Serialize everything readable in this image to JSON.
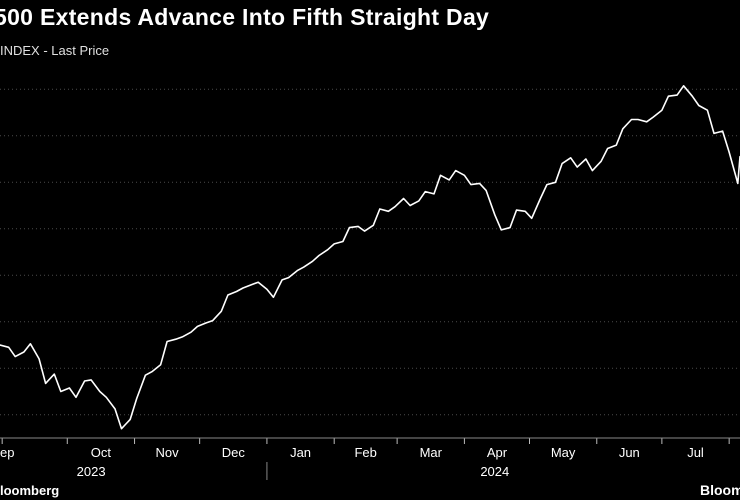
{
  "header": {
    "title": "500 Extends Advance Into Fifth Straight Day",
    "subtitle": "INDEX - Last Price"
  },
  "footer": {
    "source": "loomberg",
    "logo_text": "Bloomberg"
  },
  "colors": {
    "background": "#000000",
    "line": "#ffffff",
    "grid": "#4a4a4a"
  },
  "chart_data": {
    "type": "line",
    "title": "500 Extends Advance Into Fifth Straight Day",
    "subtitle": "INDEX - Last Price",
    "grid": true,
    "x_range": [
      "2023-08-31",
      "2024-08-06"
    ],
    "x_month_labels": [
      "ep",
      "Oct",
      "Nov",
      "Dec",
      "Jan",
      "Feb",
      "Mar",
      "Apr",
      "May",
      "Jun",
      "Jul"
    ],
    "x_year_labels": [
      "2023",
      "2024"
    ],
    "y_range": [
      4100,
      5700
    ],
    "y_gridlines": [
      4200,
      4400,
      4600,
      4800,
      5000,
      5200,
      5400,
      5600
    ],
    "series": [
      {
        "x": [
          "2023-08-31",
          "2023-09-04",
          "2023-09-07",
          "2023-09-11",
          "2023-09-14",
          "2023-09-18",
          "2023-09-21",
          "2023-09-25",
          "2023-09-28",
          "2023-10-02",
          "2023-10-05",
          "2023-10-09",
          "2023-10-12",
          "2023-10-16",
          "2023-10-19",
          "2023-10-23",
          "2023-10-26",
          "2023-10-30",
          "2023-11-02",
          "2023-11-06",
          "2023-11-09",
          "2023-11-13",
          "2023-11-16",
          "2023-11-20",
          "2023-11-23",
          "2023-11-27",
          "2023-11-30",
          "2023-12-04",
          "2023-12-07",
          "2023-12-11",
          "2023-12-14",
          "2023-12-18",
          "2023-12-21",
          "2023-12-25",
          "2023-12-28",
          "2024-01-01",
          "2024-01-04",
          "2024-01-08",
          "2024-01-11",
          "2024-01-15",
          "2024-01-18",
          "2024-01-22",
          "2024-01-25",
          "2024-01-29",
          "2024-02-01",
          "2024-02-05",
          "2024-02-08",
          "2024-02-12",
          "2024-02-15",
          "2024-02-19",
          "2024-02-22",
          "2024-02-26",
          "2024-02-29",
          "2024-03-04",
          "2024-03-07",
          "2024-03-11",
          "2024-03-14",
          "2024-03-18",
          "2024-03-21",
          "2024-03-25",
          "2024-03-28",
          "2024-04-01",
          "2024-04-04",
          "2024-04-08",
          "2024-04-11",
          "2024-04-15",
          "2024-04-18",
          "2024-04-22",
          "2024-04-25",
          "2024-04-29",
          "2024-05-02",
          "2024-05-06",
          "2024-05-09",
          "2024-05-13",
          "2024-05-16",
          "2024-05-20",
          "2024-05-23",
          "2024-05-27",
          "2024-05-30",
          "2024-06-03",
          "2024-06-06",
          "2024-06-10",
          "2024-06-13",
          "2024-06-17",
          "2024-06-20",
          "2024-06-24",
          "2024-06-27",
          "2024-07-01",
          "2024-07-04",
          "2024-07-08",
          "2024-07-11",
          "2024-07-15",
          "2024-07-18",
          "2024-07-22",
          "2024-07-25",
          "2024-07-29",
          "2024-08-01",
          "2024-08-05",
          "2024-08-06"
        ],
        "y": [
          4500,
          4490,
          4450,
          4470,
          4505,
          4440,
          4335,
          4375,
          4300,
          4315,
          4275,
          4345,
          4350,
          4300,
          4275,
          4225,
          4140,
          4180,
          4270,
          4370,
          4385,
          4415,
          4515,
          4525,
          4535,
          4555,
          4580,
          4595,
          4605,
          4645,
          4715,
          4730,
          4745,
          4760,
          4770,
          4740,
          4705,
          4780,
          4790,
          4820,
          4835,
          4860,
          4885,
          4910,
          4935,
          4945,
          5005,
          5010,
          4990,
          5015,
          5085,
          5075,
          5095,
          5130,
          5100,
          5120,
          5160,
          5150,
          5230,
          5210,
          5250,
          5230,
          5190,
          5195,
          5165,
          5060,
          4995,
          5005,
          5080,
          5075,
          5045,
          5130,
          5190,
          5200,
          5280,
          5305,
          5265,
          5300,
          5250,
          5290,
          5345,
          5360,
          5430,
          5470,
          5470,
          5460,
          5480,
          5510,
          5570,
          5575,
          5615,
          5570,
          5530,
          5510,
          5410,
          5420,
          5330,
          5195,
          5310
        ]
      }
    ]
  }
}
